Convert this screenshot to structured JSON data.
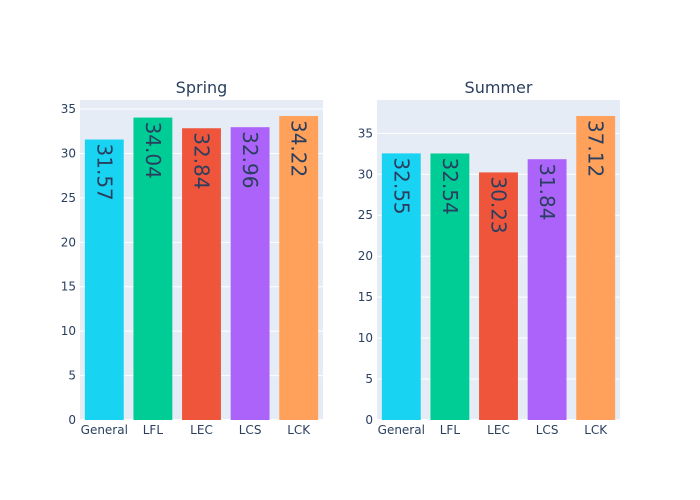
{
  "chart_data": [
    {
      "type": "bar",
      "title": "Spring",
      "categories": [
        "General",
        "LFL",
        "LEC",
        "LCS",
        "LCK"
      ],
      "values": [
        31.57,
        34.04,
        32.84,
        32.96,
        34.22
      ],
      "value_labels": [
        "31.57",
        "34.04",
        "32.84",
        "32.96",
        "34.22"
      ],
      "colors": [
        "#19D3F3",
        "#00CC96",
        "#EF553B",
        "#AB63FA",
        "#FFA15A"
      ],
      "xlabel": "",
      "ylabel": "",
      "ylim": [
        0,
        36.02
      ],
      "yticks": [
        0,
        5,
        10,
        15,
        20,
        25,
        30,
        35
      ],
      "grid": true,
      "legend": "none"
    },
    {
      "type": "bar",
      "title": "Summer",
      "categories": [
        "General",
        "LFL",
        "LEC",
        "LCS",
        "LCK"
      ],
      "values": [
        32.55,
        32.54,
        30.23,
        31.84,
        37.12
      ],
      "value_labels": [
        "32.55",
        "32.54",
        "30.23",
        "31.84",
        "37.12"
      ],
      "colors": [
        "#19D3F3",
        "#00CC96",
        "#EF553B",
        "#AB63FA",
        "#FFA15A"
      ],
      "xlabel": "",
      "ylabel": "",
      "ylim": [
        0,
        39.07
      ],
      "yticks": [
        0,
        5,
        10,
        15,
        20,
        25,
        30,
        35
      ],
      "grid": true,
      "legend": "none"
    }
  ]
}
